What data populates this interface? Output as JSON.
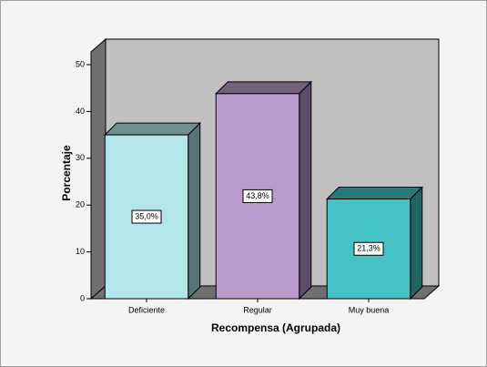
{
  "chart_data": {
    "type": "bar3d",
    "x_label": "Recompensa (Agrupada)",
    "y_label": "Porcentaje",
    "categories": [
      "Deficiente",
      "Regular",
      "Muy buena"
    ],
    "values": [
      35.0,
      43.8,
      21.3
    ],
    "value_labels": [
      "35,0%",
      "43,8%",
      "21,3%"
    ],
    "colors": [
      "#b3e6e8",
      "#b89bcb",
      "#45c2c6"
    ],
    "ylim": [
      0,
      50
    ],
    "yticks": [
      0,
      10,
      20,
      30,
      40,
      50
    ],
    "grid": false
  }
}
